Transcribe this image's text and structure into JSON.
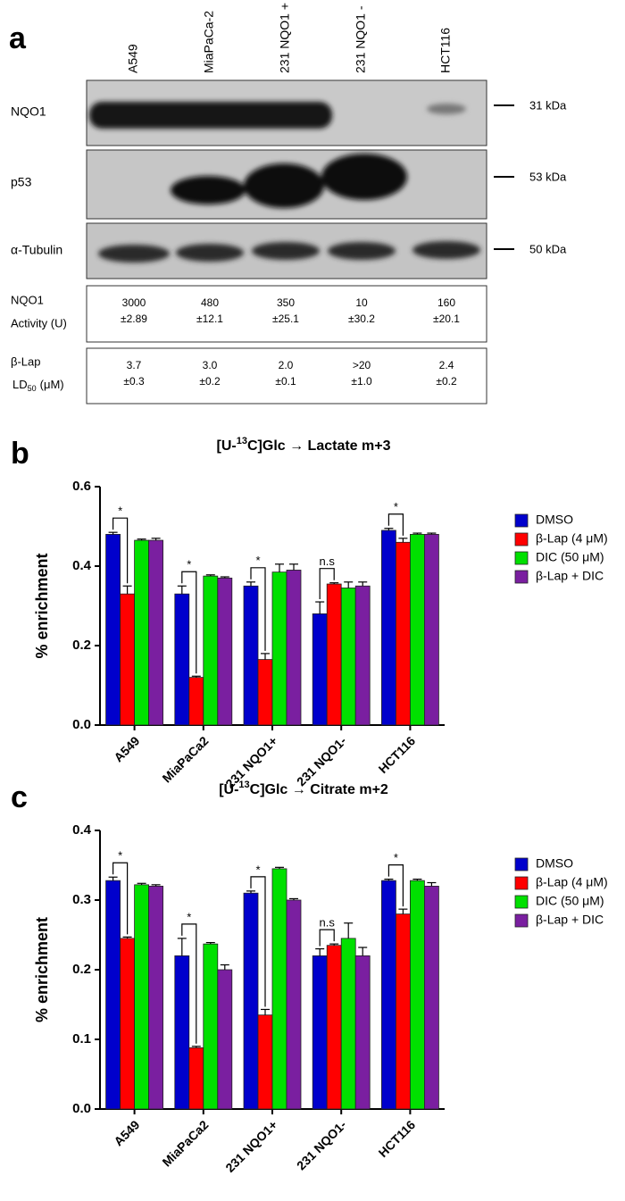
{
  "panel_a": {
    "label": "a",
    "lanes": [
      "A549",
      "MiaPaCa-2",
      "231 NQO1 +",
      "231 NQO1 -",
      "HCT116"
    ],
    "blots": [
      {
        "name": "NQO1",
        "size": "31 kDa"
      },
      {
        "name": "p53",
        "size": "53 kDa"
      },
      {
        "name": "α-Tubulin",
        "size": "50 kDa"
      }
    ],
    "activity": {
      "label": [
        "NQO1",
        "Activity (U)"
      ],
      "values": [
        [
          "3000",
          "±2.89"
        ],
        [
          "480",
          "±12.1"
        ],
        [
          "350",
          "±25.1"
        ],
        [
          "10",
          "±30.2"
        ],
        [
          "160",
          "±20.1"
        ]
      ]
    },
    "ld50": {
      "label": [
        "β-Lap",
        "LD",
        "50",
        "(μM)"
      ],
      "values": [
        [
          "3.7",
          "±0.3"
        ],
        [
          "3.0",
          "±0.2"
        ],
        [
          "2.0",
          "±0.1"
        ],
        [
          ">20",
          "±1.0"
        ],
        [
          "2.4",
          "±0.2"
        ]
      ]
    }
  },
  "chart_data": [
    {
      "type": "bar",
      "panel_label": "b",
      "title_parts": [
        "[U-",
        "13",
        "C]Glc → Lactate m+3"
      ],
      "y_label": "% enrichment",
      "categories": [
        "A549",
        "MiaPaCa2",
        "231 NQO1+",
        "231 NQO1-",
        "HCT116"
      ],
      "series": [
        {
          "name": "DMSO",
          "color": "#0000cc",
          "values": [
            0.48,
            0.33,
            0.35,
            0.28,
            0.49
          ],
          "errors": [
            0.005,
            0.02,
            0.01,
            0.03,
            0.005
          ]
        },
        {
          "name": "β-Lap (4 μM)",
          "color": "#ff0000",
          "values": [
            0.33,
            0.12,
            0.165,
            0.355,
            0.46
          ],
          "errors": [
            0.02,
            0.003,
            0.015,
            0.003,
            0.01
          ]
        },
        {
          "name": "DIC (50 μM)",
          "color": "#00e000",
          "values": [
            0.465,
            0.375,
            0.385,
            0.345,
            0.48
          ],
          "errors": [
            0.003,
            0.003,
            0.02,
            0.015,
            0.003
          ]
        },
        {
          "name": "β-Lap + DIC",
          "color": "#7a1fa0",
          "values": [
            0.465,
            0.37,
            0.39,
            0.35,
            0.48
          ],
          "errors": [
            0.005,
            0.003,
            0.015,
            0.01,
            0.003
          ]
        }
      ],
      "annotations": [
        "*",
        "*",
        "*",
        "n.s",
        "*"
      ],
      "ylim": [
        0,
        0.6
      ],
      "yticks": [
        {
          "value": 0,
          "label": "0.0"
        },
        0.2,
        0.4,
        0.6
      ],
      "legend": "right"
    },
    {
      "type": "bar",
      "panel_label": "c",
      "title_parts": [
        "[U-",
        "13",
        "C]Glc → Citrate m+2"
      ],
      "y_label": "% enrichment",
      "categories": [
        "A549",
        "MiaPaCa2",
        "231 NQO1+",
        "231 NQO1-",
        "HCT116"
      ],
      "series": [
        {
          "name": "DMSO",
          "color": "#0000cc",
          "values": [
            0.328,
            0.22,
            0.31,
            0.22,
            0.328
          ],
          "errors": [
            0.005,
            0.025,
            0.003,
            0.01,
            0.002
          ]
        },
        {
          "name": "β-Lap (4 μM)",
          "color": "#ff0000",
          "values": [
            0.245,
            0.088,
            0.135,
            0.235,
            0.28
          ],
          "errors": [
            0.002,
            0.002,
            0.008,
            0.002,
            0.007
          ]
        },
        {
          "name": "DIC (50 μM)",
          "color": "#00e000",
          "values": [
            0.322,
            0.237,
            0.345,
            0.245,
            0.328
          ],
          "errors": [
            0.002,
            0.002,
            0.002,
            0.022,
            0.002
          ]
        },
        {
          "name": "β-Lap + DIC",
          "color": "#7a1fa0",
          "values": [
            0.32,
            0.2,
            0.3,
            0.22,
            0.32
          ],
          "errors": [
            0.002,
            0.007,
            0.002,
            0.012,
            0.005
          ]
        }
      ],
      "annotations": [
        "*",
        "*",
        "*",
        "n.s",
        "*"
      ],
      "ylim": [
        0,
        0.4
      ],
      "yticks": [
        {
          "value": 0,
          "label": "0.0"
        },
        0.1,
        0.2,
        0.3,
        0.4
      ],
      "legend": "right"
    }
  ]
}
